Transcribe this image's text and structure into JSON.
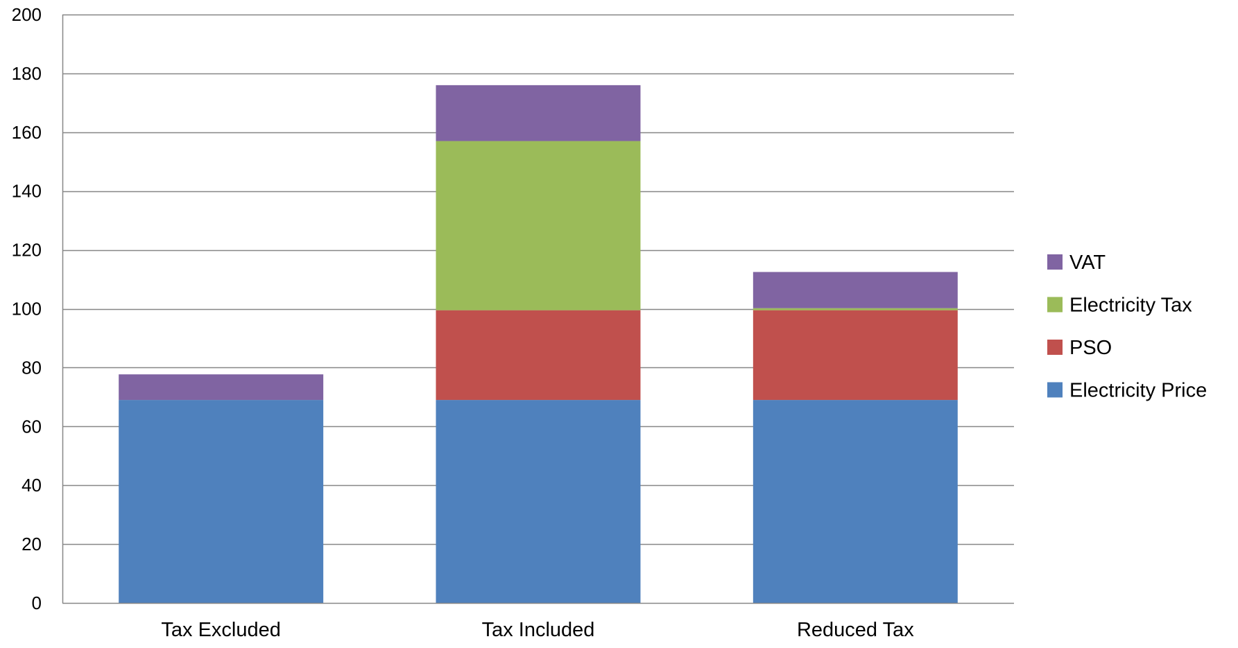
{
  "chart_data": {
    "type": "bar",
    "stacked": true,
    "title": "",
    "xlabel": "",
    "ylabel": "",
    "categories": [
      "Tax Excluded",
      "Tax Included",
      "Reduced Tax"
    ],
    "ylim": [
      0,
      200
    ],
    "yticks": [
      0,
      20,
      40,
      60,
      80,
      100,
      120,
      140,
      160,
      180,
      200
    ],
    "grid": true,
    "legend_position": "right",
    "series": [
      {
        "name": "Electricity Price",
        "color": "#4F81BD",
        "values": [
          69,
          69,
          69
        ]
      },
      {
        "name": "PSO",
        "color": "#C0504D",
        "values": [
          0,
          30.5,
          30.5
        ]
      },
      {
        "name": "Electricity Tax",
        "color": "#9BBB59",
        "values": [
          0,
          57.5,
          0.7
        ]
      },
      {
        "name": "VAT",
        "color": "#8064A2",
        "values": [
          8.7,
          19,
          12.3
        ]
      }
    ]
  }
}
